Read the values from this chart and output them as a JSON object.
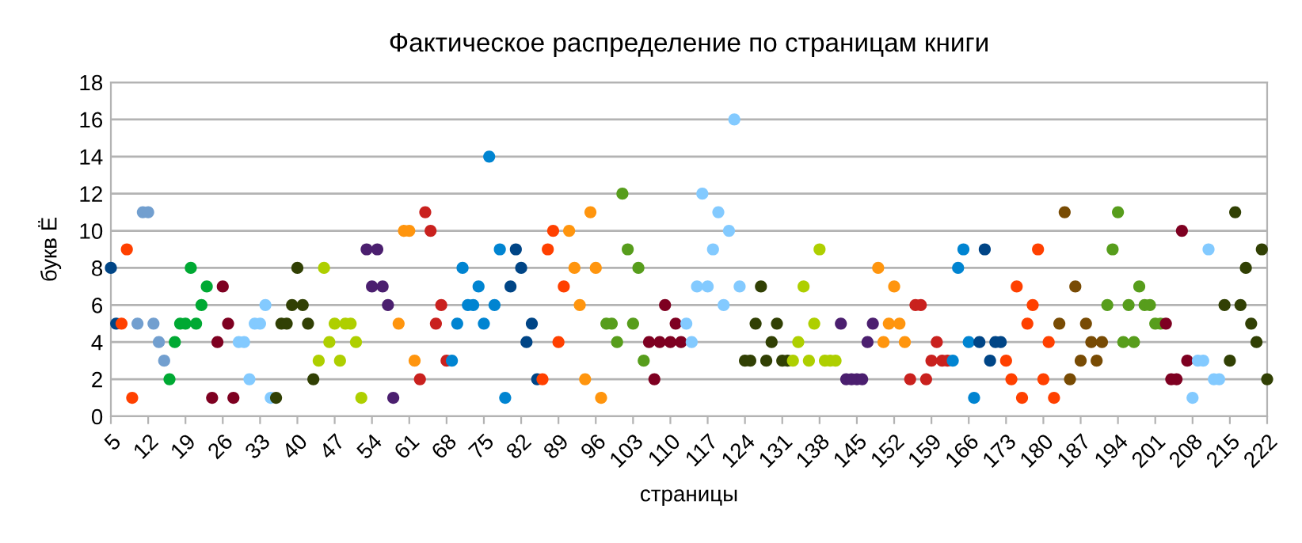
{
  "chart_data": {
    "type": "scatter",
    "title": "Фактическое распределение по страницам книги",
    "xlabel": "страницы",
    "ylabel": "букв Ё",
    "xlim": [
      5,
      222
    ],
    "xticks": [
      5,
      12,
      19,
      26,
      33,
      40,
      47,
      54,
      61,
      68,
      75,
      82,
      89,
      96,
      103,
      110,
      117,
      124,
      131,
      138,
      145,
      152,
      159,
      166,
      173,
      180,
      187,
      194,
      201,
      208,
      215,
      222
    ],
    "ylim": [
      0,
      18
    ],
    "yticks": [
      0,
      2,
      4,
      6,
      8,
      10,
      12,
      14,
      16,
      18
    ],
    "grid": "y",
    "marker": "circle",
    "series": [
      {
        "color": "#004586",
        "x": [
          5,
          6
        ],
        "values": [
          8,
          5
        ]
      },
      {
        "color": "#ff4000",
        "x": [
          7,
          8,
          9
        ],
        "values": [
          5,
          9,
          1
        ]
      },
      {
        "color": "#729fcf",
        "x": [
          10,
          11,
          12,
          13,
          14,
          15
        ],
        "values": [
          5,
          11,
          11,
          5,
          4,
          3
        ]
      },
      {
        "color": "#00a933",
        "x": [
          16,
          17,
          18,
          19,
          20,
          21,
          22,
          23
        ],
        "values": [
          2,
          4,
          5,
          5,
          8,
          5,
          6,
          7
        ]
      },
      {
        "color": "#7e0021",
        "x": [
          24,
          25,
          26,
          27,
          28
        ],
        "values": [
          1,
          4,
          7,
          5,
          1
        ]
      },
      {
        "color": "#83caff",
        "x": [
          29,
          30,
          31,
          32,
          33,
          34,
          35
        ],
        "values": [
          4,
          4,
          2,
          5,
          5,
          6,
          1
        ]
      },
      {
        "color": "#314004",
        "x": [
          36,
          37,
          38,
          39,
          40,
          41,
          42,
          43
        ],
        "values": [
          1,
          5,
          5,
          6,
          8,
          6,
          5,
          2
        ]
      },
      {
        "color": "#aecf00",
        "x": [
          44,
          45,
          46,
          47,
          48,
          49,
          50,
          51,
          52
        ],
        "values": [
          3,
          8,
          4,
          5,
          3,
          5,
          5,
          4,
          1
        ]
      },
      {
        "color": "#4b1f6f",
        "x": [
          53,
          54,
          55,
          56,
          57,
          58
        ],
        "values": [
          9,
          7,
          9,
          7,
          6,
          1
        ]
      },
      {
        "color": "#ff950e",
        "x": [
          59,
          60,
          61,
          62
        ],
        "values": [
          5,
          10,
          10,
          3
        ]
      },
      {
        "color": "#c9211e",
        "x": [
          63,
          64,
          65,
          66,
          67,
          68
        ],
        "values": [
          2,
          11,
          10,
          5,
          6,
          3
        ]
      },
      {
        "color": "#0084d1",
        "x": [
          69,
          70,
          71,
          72,
          73,
          74,
          75,
          76,
          77,
          78,
          79
        ],
        "values": [
          3,
          5,
          8,
          6,
          6,
          7,
          5,
          14,
          6,
          9,
          1
        ]
      },
      {
        "color": "#004586",
        "x": [
          80,
          81,
          82,
          83,
          84,
          85
        ],
        "values": [
          7,
          9,
          8,
          4,
          5,
          2
        ]
      },
      {
        "color": "#ff4000",
        "x": [
          86,
          87,
          88,
          89,
          90
        ],
        "values": [
          2,
          9,
          10,
          4,
          7
        ]
      },
      {
        "color": "#ff950e",
        "x": [
          91,
          92,
          93,
          94,
          95,
          96,
          97
        ],
        "values": [
          10,
          8,
          6,
          2,
          11,
          8,
          1
        ]
      },
      {
        "color": "#579d1c",
        "x": [
          98,
          99,
          100,
          101,
          102,
          103,
          104,
          105
        ],
        "values": [
          5,
          5,
          4,
          12,
          9,
          5,
          8,
          3
        ]
      },
      {
        "color": "#7e0021",
        "x": [
          106,
          107,
          108,
          109,
          110,
          111,
          112
        ],
        "values": [
          4,
          2,
          4,
          6,
          4,
          5,
          4
        ]
      },
      {
        "color": "#83caff",
        "x": [
          113,
          114,
          115,
          116,
          117,
          118,
          119,
          120,
          121,
          122,
          123
        ],
        "values": [
          5,
          4,
          7,
          12,
          7,
          9,
          11,
          6,
          10,
          16,
          7
        ]
      },
      {
        "color": "#314004",
        "x": [
          124,
          125,
          126,
          127,
          128,
          129,
          130,
          131,
          132
        ],
        "values": [
          3,
          3,
          5,
          7,
          3,
          4,
          5,
          3,
          3
        ]
      },
      {
        "color": "#aecf00",
        "x": [
          133,
          134,
          135,
          136,
          137,
          138,
          139,
          140,
          141
        ],
        "values": [
          3,
          4,
          7,
          3,
          5,
          9,
          3,
          3,
          3
        ]
      },
      {
        "color": "#4b1f6f",
        "x": [
          142,
          143,
          144,
          145,
          146,
          147,
          148
        ],
        "values": [
          5,
          2,
          2,
          2,
          2,
          4,
          5
        ]
      },
      {
        "color": "#ff950e",
        "x": [
          149,
          150,
          151,
          152,
          153,
          154
        ],
        "values": [
          8,
          4,
          5,
          7,
          5,
          4
        ]
      },
      {
        "color": "#c9211e",
        "x": [
          155,
          156,
          157,
          158,
          159,
          160,
          161,
          162
        ],
        "values": [
          2,
          6,
          6,
          2,
          3,
          4,
          3,
          3
        ]
      },
      {
        "color": "#0084d1",
        "x": [
          163,
          164,
          165,
          166,
          167
        ],
        "values": [
          3,
          8,
          9,
          4,
          1
        ]
      },
      {
        "color": "#004586",
        "x": [
          168,
          169,
          170,
          171,
          172
        ],
        "values": [
          4,
          9,
          3,
          4,
          4
        ]
      },
      {
        "color": "#ff4000",
        "x": [
          173,
          174,
          175,
          176,
          177,
          178,
          179,
          180,
          181,
          182
        ],
        "values": [
          3,
          2,
          7,
          1,
          5,
          6,
          9,
          2,
          4,
          1
        ]
      },
      {
        "color": "#784b04",
        "x": [
          183,
          184,
          185,
          186,
          187,
          188,
          189,
          190,
          191
        ],
        "values": [
          5,
          11,
          2,
          7,
          3,
          5,
          4,
          3,
          4
        ]
      },
      {
        "color": "#579d1c",
        "x": [
          192,
          193,
          194,
          195,
          196,
          197,
          198,
          199,
          200,
          201,
          202
        ],
        "values": [
          6,
          9,
          11,
          4,
          6,
          4,
          7,
          6,
          6,
          5,
          5
        ]
      },
      {
        "color": "#7e0021",
        "x": [
          203,
          204,
          205,
          206,
          207
        ],
        "values": [
          5,
          2,
          2,
          10,
          3
        ]
      },
      {
        "color": "#83caff",
        "x": [
          208,
          209,
          210,
          211,
          212,
          213
        ],
        "values": [
          1,
          3,
          3,
          9,
          2,
          2
        ]
      },
      {
        "color": "#314004",
        "x": [
          214,
          215,
          216,
          217,
          218,
          219,
          220,
          221,
          222
        ],
        "values": [
          6,
          3,
          11,
          6,
          8,
          5,
          4,
          9,
          2
        ]
      }
    ]
  }
}
